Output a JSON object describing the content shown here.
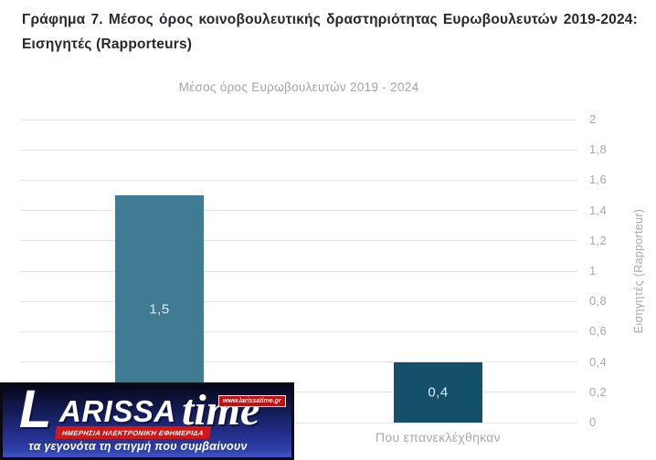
{
  "page": {
    "title": "Γράφημα 7. Μέσος όρος κοινοβουλευτικής δραστηριότητας Ευρωβουλευτών 2019-2024: Εισηγητές (Rapporteurs)"
  },
  "chart_data": {
    "type": "bar",
    "title": "Μέσος όρος Ευρωβουλευτών 2019 - 2024",
    "categories": [
      "",
      "Που επανεκλέχθηκαν"
    ],
    "values": [
      1.5,
      0.4
    ],
    "value_labels": [
      "1,5",
      "0,4"
    ],
    "bar_colors": [
      "#3f7b93",
      "#15506a"
    ],
    "xlabel": "",
    "ylabel": "Εισηγητές (Rapporteur)",
    "ylim": [
      0,
      2
    ],
    "y_axis_position": "right",
    "grid": true,
    "legend": false,
    "yticks": [
      {
        "value": 0,
        "label": "0"
      },
      {
        "value": 0.2,
        "label": "0,2"
      },
      {
        "value": 0.4,
        "label": "0,4"
      },
      {
        "value": 0.6,
        "label": "0,6"
      },
      {
        "value": 0.8,
        "label": "0,8"
      },
      {
        "value": 1,
        "label": "1"
      },
      {
        "value": 1.2,
        "label": "1,2"
      },
      {
        "value": 1.4,
        "label": "1,4"
      },
      {
        "value": 1.6,
        "label": "1,6"
      },
      {
        "value": 1.8,
        "label": "1,8"
      },
      {
        "value": 2,
        "label": "2"
      }
    ],
    "colors": {
      "grid": "#e3e3e6",
      "axis_text": "#a8a8ad",
      "chart_title_text": "#a2a2a8",
      "doc_title_text": "#26262e",
      "bar_value_text": "#e0ebf1"
    }
  },
  "watermark": {
    "brand_l": "L",
    "brand_main": "ARISSA",
    "brand_suffix": "time",
    "url": "www.larissatime.gr",
    "band": "ΗΜΕΡΗΣΙΑ ΗΛΕΚΤΡΟΝΙΚΗ ΕΦΗΜΕΡΙΔΑ",
    "tagline": "τα γεγονότα τη στιγμή που συμβαίνουν"
  }
}
